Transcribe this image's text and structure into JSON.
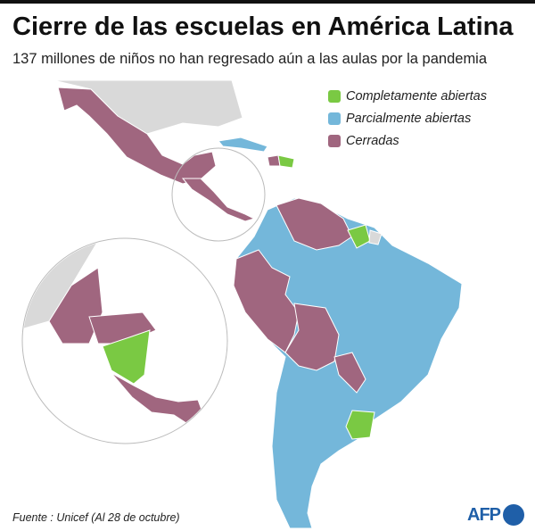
{
  "header": {
    "title": "Cierre de las escuelas en América Latina",
    "subtitle": "137 millones de niños no han regresado aún a las aulas por la pandemia"
  },
  "legend": {
    "items": [
      {
        "label": "Completamente abiertas",
        "color": "#7ac943"
      },
      {
        "label": "Parcialmente abiertas",
        "color": "#74b7da"
      },
      {
        "label": "Cerradas",
        "color": "#a0667f"
      }
    ]
  },
  "footer": {
    "source": "Fuente : Unicef (Al 28 de octubre)",
    "logo": "AFP"
  }
}
